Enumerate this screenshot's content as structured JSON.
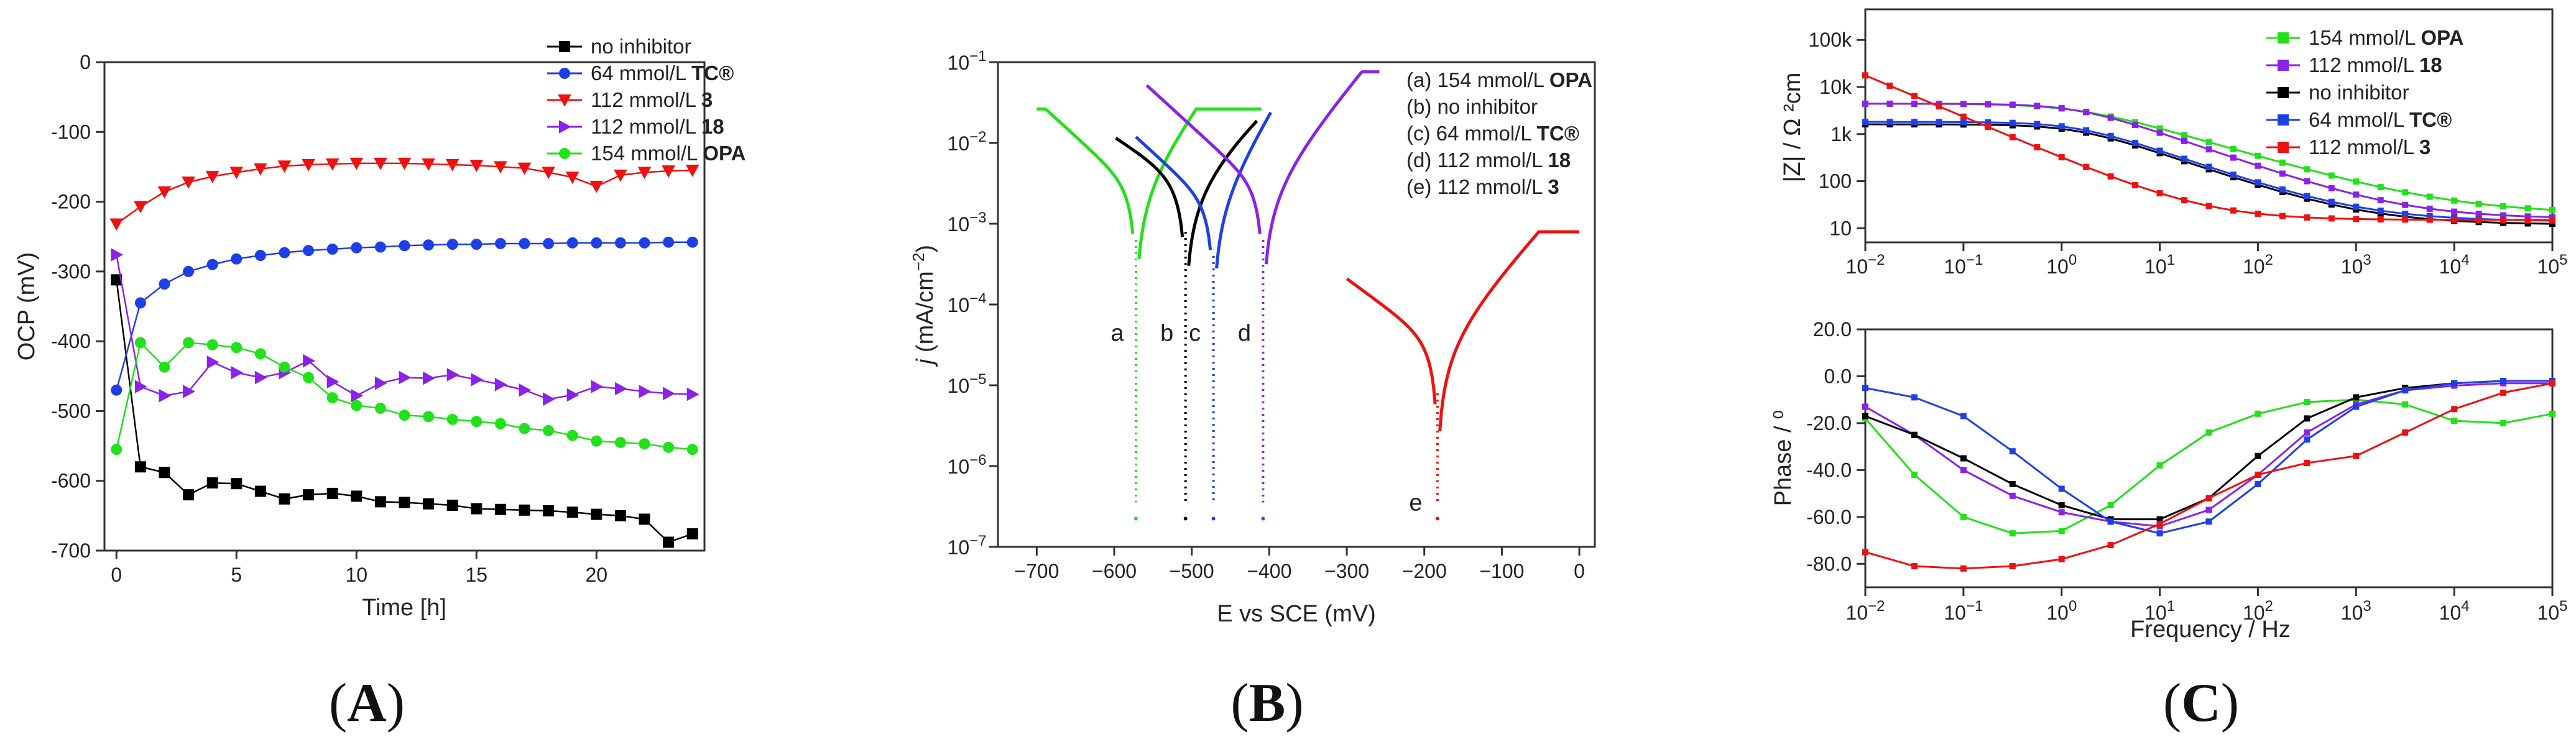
{
  "panels": {
    "A": {
      "label": "A",
      "paren_open": "(",
      "paren_close": ")"
    },
    "B": {
      "label": "B",
      "paren_open": "(",
      "paren_close": ")"
    },
    "C": {
      "label": "C",
      "paren_open": "(",
      "paren_close": ")"
    }
  },
  "chart_data": [
    {
      "id": "A",
      "type": "line",
      "title": "",
      "xlabel": "Time [h]",
      "ylabel": "OCP (mV)",
      "xlim": [
        -0.5,
        24.5
      ],
      "ylim": [
        -700,
        0
      ],
      "xticks": [
        0,
        5,
        10,
        15,
        20
      ],
      "yticks": [
        -700,
        -600,
        -500,
        -400,
        -300,
        -200,
        -100,
        0
      ],
      "grid": false,
      "legend_position": "top-right",
      "series": [
        {
          "name": "no inhibitor",
          "bold": "",
          "color": "#000000",
          "marker": "square",
          "x": [
            0,
            1,
            2,
            3,
            4,
            5,
            6,
            7,
            8,
            9,
            10,
            11,
            12,
            13,
            14,
            15,
            16,
            17,
            18,
            19,
            20,
            21,
            22,
            23,
            24
          ],
          "y": [
            -312,
            -580,
            -588,
            -620,
            -603,
            -604,
            -615,
            -626,
            -620,
            -618,
            -622,
            -630,
            -631,
            -633,
            -635,
            -640,
            -641,
            -642,
            -643,
            -645,
            -648,
            -650,
            -655,
            -688,
            -676
          ]
        },
        {
          "name": "64 mmol/L ",
          "bold": "TC®",
          "color": "#1f3fe6",
          "marker": "circle",
          "x": [
            0,
            1,
            2,
            3,
            4,
            5,
            6,
            7,
            8,
            9,
            10,
            11,
            12,
            13,
            14,
            15,
            16,
            17,
            18,
            19,
            20,
            21,
            22,
            23,
            24
          ],
          "y": [
            -470,
            -345,
            -318,
            -300,
            -290,
            -282,
            -277,
            -273,
            -270,
            -268,
            -266,
            -265,
            -263,
            -262,
            -261,
            -261,
            -260,
            -260,
            -260,
            -259,
            -259,
            -259,
            -259,
            -258,
            -258
          ]
        },
        {
          "name": "112 mmol/L ",
          "bold": "3",
          "color": "#ee1111",
          "marker": "triangle-down",
          "x": [
            0,
            1,
            2,
            3,
            4,
            5,
            6,
            7,
            8,
            9,
            10,
            11,
            12,
            13,
            14,
            15,
            16,
            17,
            18,
            19,
            20,
            21,
            22,
            23,
            24
          ],
          "y": [
            -232,
            -207,
            -186,
            -172,
            -164,
            -158,
            -153,
            -149,
            -147,
            -146,
            -145,
            -145,
            -145,
            -146,
            -147,
            -148,
            -150,
            -152,
            -158,
            -165,
            -178,
            -162,
            -158,
            -156,
            -155
          ]
        },
        {
          "name": "112 mmol/L ",
          "bold": "18",
          "color": "#8a22e8",
          "marker": "triangle-right",
          "x": [
            0,
            1,
            2,
            3,
            4,
            5,
            6,
            7,
            8,
            9,
            10,
            11,
            12,
            13,
            14,
            15,
            16,
            17,
            18,
            19,
            20,
            21,
            22,
            23,
            24
          ],
          "y": [
            -276,
            -465,
            -478,
            -472,
            -430,
            -445,
            -452,
            -445,
            -428,
            -458,
            -478,
            -460,
            -452,
            -453,
            -448,
            -455,
            -462,
            -470,
            -483,
            -477,
            -465,
            -468,
            -472,
            -475,
            -476
          ]
        },
        {
          "name": "154 mmol/L ",
          "bold": "OPA",
          "color": "#22e01a",
          "marker": "circle",
          "x": [
            0,
            1,
            2,
            3,
            4,
            5,
            6,
            7,
            8,
            9,
            10,
            11,
            12,
            13,
            14,
            15,
            16,
            17,
            18,
            19,
            20,
            21,
            22,
            23,
            24
          ],
          "y": [
            -555,
            -402,
            -437,
            -402,
            -405,
            -409,
            -418,
            -437,
            -452,
            -481,
            -492,
            -496,
            -506,
            -508,
            -512,
            -515,
            -518,
            -525,
            -528,
            -535,
            -543,
            -545,
            -547,
            -552,
            -555
          ]
        }
      ]
    },
    {
      "id": "B",
      "type": "line",
      "title": "",
      "xlabel": "E vs SCE (mV)",
      "ylabel_italic": "j",
      "ylabel_rest": " (mA/cm",
      "ylabel_sup": "−2",
      "ylabel_end": ")",
      "xlim": [
        -750,
        20
      ],
      "ylim_log10": [
        -7,
        -1
      ],
      "xticks": [
        -700,
        -600,
        -500,
        -400,
        -300,
        -200,
        -100,
        0
      ],
      "yticks_exp": [
        -7,
        -6,
        -5,
        -4,
        -3,
        -2,
        -1
      ],
      "tick_base": "10",
      "legend_position": "top-right",
      "series": [
        {
          "name": "(a) 154 mmol/L ",
          "bold": "OPA",
          "color": "#22e01a",
          "ecorr": -572,
          "ilog": -2.6,
          "tag": "a",
          "Emin": -700,
          "Emax": -410,
          "sa": 0.015,
          "sc": 0.035,
          "peak": -1.58
        },
        {
          "name": "(b) no inhibitor",
          "bold": "",
          "color": "#000000",
          "ecorr": -508,
          "ilog": -2.5,
          "tag": "b",
          "Emin": -598,
          "Emax": -415,
          "sa": 0.01,
          "sc": 0.025,
          "peak": -1.05
        },
        {
          "name": "(c) 64 mmol/L ",
          "bold": "TC®",
          "color": "#1f3fe6",
          "ecorr": -472,
          "ilog": -2.8,
          "tag": "c",
          "Emin": -572,
          "Emax": -398,
          "sa": 0.018,
          "sc": 0.035,
          "peak": -1.6
        },
        {
          "name": "(d) 112 mmol/L ",
          "bold": "18",
          "color": "#8a22e8",
          "ecorr": -408,
          "ilog": -2.6,
          "tag": "d",
          "Emin": -558,
          "Emax": -258,
          "sa": 0.013,
          "sc": 0.035,
          "peak": -1.12
        },
        {
          "name": "(e) 112 mmol/L ",
          "bold": "3",
          "color": "#ee1111",
          "ecorr": -183,
          "ilog": -4.5,
          "tag": "e",
          "Emin": -300,
          "Emax": 0,
          "sa": 0.012,
          "sc": 0.028,
          "peak": -3.1
        }
      ]
    },
    {
      "id": "C-top",
      "type": "line",
      "title": "",
      "xlabel": "",
      "ylabel": "|Z| / Ω ²cm",
      "xlim_log10": [
        -2,
        5
      ],
      "ylim_log10": [
        0.7,
        5.65
      ],
      "xticks_exp": [
        -2,
        -1,
        0,
        1,
        2,
        3,
        4,
        5
      ],
      "tick_base": "10",
      "ytick_labels": [
        "10",
        "100",
        "1k",
        "10k",
        "100k"
      ],
      "legend_position": "top-right",
      "series": [
        {
          "name": "154 mmol/L ",
          "bold": "OPA",
          "color": "#22e01a",
          "R": 4400,
          "Rs": 20,
          "a": 0.62
        },
        {
          "name": "112 mmol/L ",
          "bold": "18",
          "color": "#8a22e8",
          "R": 4400,
          "Rs": 16,
          "a": 0.74
        },
        {
          "name": "no inhibitor",
          "bold": "",
          "color": "#000000",
          "R": 1600,
          "Rs": 12,
          "a": 0.74
        },
        {
          "name": "64 mmol/L  ",
          "bold": "TC®",
          "color": "#1f3fe6",
          "R": 1800,
          "Rs": 14,
          "a": 0.74
        },
        {
          "name": "112 mmol/L ",
          "bold": "3",
          "color": "#ee1111",
          "R": 300000,
          "Rs": 15,
          "a": 0.88
        }
      ]
    },
    {
      "id": "C-bottom",
      "type": "line",
      "title": "",
      "xlabel": "Frequency / Hz",
      "ylabel": "Phase / ⁰",
      "xlim_log10": [
        -2,
        5
      ],
      "ylim": [
        -90,
        20
      ],
      "xticks_exp": [
        -2,
        -1,
        0,
        1,
        2,
        3,
        4,
        5
      ],
      "tick_base": "10",
      "yticks": [
        20,
        0,
        -20,
        -40,
        -60,
        -80
      ],
      "ytick_labels": [
        "20.0",
        "0.0",
        "-20.0",
        "-40.0",
        "-60.0",
        "-80.0"
      ],
      "legend_position": "none",
      "series": [
        {
          "name": "154 mmol/L OPA",
          "color": "#22e01a",
          "logf": [
            -2,
            -1.5,
            -1,
            -0.5,
            0,
            0.5,
            1,
            1.5,
            2,
            2.5,
            3,
            3.5,
            4,
            4.5,
            5
          ],
          "phase": [
            -18,
            -42,
            -60,
            -67,
            -66,
            -55,
            -38,
            -24,
            -16,
            -11,
            -10,
            -12,
            -19,
            -20,
            -16
          ]
        },
        {
          "name": "112 mmol/L 18",
          "color": "#8a22e8",
          "logf": [
            -2,
            -1.5,
            -1,
            -0.5,
            0,
            0.5,
            1,
            1.5,
            2,
            2.5,
            3,
            3.5,
            4,
            4.5,
            5
          ],
          "phase": [
            -13,
            -25,
            -40,
            -51,
            -58,
            -62,
            -64,
            -57,
            -42,
            -24,
            -12,
            -6,
            -4,
            -3,
            -3
          ]
        },
        {
          "name": "no inhibitor",
          "color": "#000000",
          "logf": [
            -2,
            -1.5,
            -1,
            -0.5,
            0,
            0.5,
            1,
            1.5,
            2,
            2.5,
            3,
            3.5,
            4,
            4.5,
            5
          ],
          "phase": [
            -17,
            -25,
            -35,
            -46,
            -55,
            -61,
            -61,
            -52,
            -34,
            -18,
            -9,
            -5,
            -3,
            -2,
            -2
          ]
        },
        {
          "name": "64 mmol/L TC®",
          "color": "#1f3fe6",
          "logf": [
            -2,
            -1.5,
            -1,
            -0.5,
            0,
            0.5,
            1,
            1.5,
            2,
            2.5,
            3,
            3.5,
            4,
            4.5,
            5
          ],
          "phase": [
            -5,
            -9,
            -17,
            -32,
            -48,
            -62,
            -67,
            -62,
            -46,
            -27,
            -13,
            -6,
            -3,
            -2,
            -2
          ]
        },
        {
          "name": "112 mmol/L 3",
          "color": "#ee1111",
          "logf": [
            -2,
            -1.5,
            -1,
            -0.5,
            0,
            0.5,
            1,
            1.5,
            2,
            2.5,
            3,
            3.5,
            4,
            4.5,
            5
          ],
          "phase": [
            -75,
            -81,
            -82,
            -81,
            -78,
            -72,
            -63,
            -52,
            -42,
            -37,
            -34,
            -24,
            -14,
            -7,
            -3
          ]
        }
      ]
    }
  ]
}
